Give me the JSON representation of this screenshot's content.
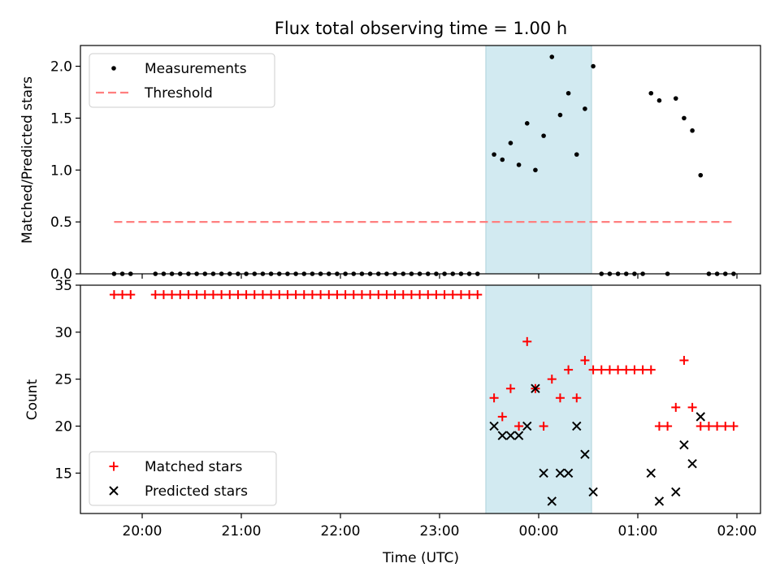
{
  "chart_data": [
    {
      "type": "scatter",
      "title": "Flux total observing time = 1.00 h",
      "xlabel": "",
      "ylabel": "Matched/Predicted stars",
      "ylim": [
        0,
        2.2
      ],
      "yticks": [
        "0.0",
        "0.5",
        "1.0",
        "1.5",
        "2.0"
      ],
      "grid": false,
      "legend_position": "upper-left",
      "shaded_interval": {
        "start": "23:28",
        "end": "00:32",
        "color": "#add8e6"
      },
      "series": [
        {
          "name": "Measurements",
          "color": "#000000",
          "marker": "dot",
          "points": [
            {
              "x": "19:43",
              "y": 0
            },
            {
              "x": "19:48",
              "y": 0
            },
            {
              "x": "19:53",
              "y": 0
            },
            {
              "x": "20:08",
              "y": 0
            },
            {
              "x": "20:13",
              "y": 0
            },
            {
              "x": "20:18",
              "y": 0
            },
            {
              "x": "20:23",
              "y": 0
            },
            {
              "x": "20:28",
              "y": 0
            },
            {
              "x": "20:33",
              "y": 0
            },
            {
              "x": "20:38",
              "y": 0
            },
            {
              "x": "20:43",
              "y": 0
            },
            {
              "x": "20:48",
              "y": 0
            },
            {
              "x": "20:53",
              "y": 0
            },
            {
              "x": "20:58",
              "y": 0
            },
            {
              "x": "21:03",
              "y": 0
            },
            {
              "x": "21:08",
              "y": 0
            },
            {
              "x": "21:13",
              "y": 0
            },
            {
              "x": "21:18",
              "y": 0
            },
            {
              "x": "21:23",
              "y": 0
            },
            {
              "x": "21:28",
              "y": 0
            },
            {
              "x": "21:33",
              "y": 0
            },
            {
              "x": "21:38",
              "y": 0
            },
            {
              "x": "21:43",
              "y": 0
            },
            {
              "x": "21:48",
              "y": 0
            },
            {
              "x": "21:53",
              "y": 0
            },
            {
              "x": "21:58",
              "y": 0
            },
            {
              "x": "22:03",
              "y": 0
            },
            {
              "x": "22:08",
              "y": 0
            },
            {
              "x": "22:13",
              "y": 0
            },
            {
              "x": "22:18",
              "y": 0
            },
            {
              "x": "22:23",
              "y": 0
            },
            {
              "x": "22:28",
              "y": 0
            },
            {
              "x": "22:33",
              "y": 0
            },
            {
              "x": "22:38",
              "y": 0
            },
            {
              "x": "22:43",
              "y": 0
            },
            {
              "x": "22:48",
              "y": 0
            },
            {
              "x": "22:53",
              "y": 0
            },
            {
              "x": "22:58",
              "y": 0
            },
            {
              "x": "23:03",
              "y": 0
            },
            {
              "x": "23:08",
              "y": 0
            },
            {
              "x": "23:13",
              "y": 0
            },
            {
              "x": "23:18",
              "y": 0
            },
            {
              "x": "23:23",
              "y": 0
            },
            {
              "x": "23:33",
              "y": 1.15
            },
            {
              "x": "23:38",
              "y": 1.1
            },
            {
              "x": "23:43",
              "y": 1.26
            },
            {
              "x": "23:48",
              "y": 1.05
            },
            {
              "x": "23:53",
              "y": 1.45
            },
            {
              "x": "23:58",
              "y": 1.0
            },
            {
              "x": "00:03",
              "y": 1.33
            },
            {
              "x": "00:08",
              "y": 2.09
            },
            {
              "x": "00:13",
              "y": 1.53
            },
            {
              "x": "00:18",
              "y": 1.74
            },
            {
              "x": "00:23",
              "y": 1.15
            },
            {
              "x": "00:28",
              "y": 1.59
            },
            {
              "x": "00:33",
              "y": 2.0
            },
            {
              "x": "00:38",
              "y": 0
            },
            {
              "x": "00:43",
              "y": 0
            },
            {
              "x": "00:48",
              "y": 0
            },
            {
              "x": "00:53",
              "y": 0
            },
            {
              "x": "00:58",
              "y": 0
            },
            {
              "x": "01:03",
              "y": 0
            },
            {
              "x": "01:08",
              "y": 1.74
            },
            {
              "x": "01:13",
              "y": 1.67
            },
            {
              "x": "01:18",
              "y": 0
            },
            {
              "x": "01:23",
              "y": 1.69
            },
            {
              "x": "01:28",
              "y": 1.5
            },
            {
              "x": "01:33",
              "y": 1.38
            },
            {
              "x": "01:38",
              "y": 0.95
            },
            {
              "x": "01:43",
              "y": 0
            },
            {
              "x": "01:48",
              "y": 0
            },
            {
              "x": "01:53",
              "y": 0
            },
            {
              "x": "01:58",
              "y": 0
            }
          ]
        },
        {
          "name": "Threshold",
          "color": "#ff7f7f",
          "style": "dashed-line",
          "points": [
            {
              "x": "19:43",
              "y": 0.5
            },
            {
              "x": "01:58",
              "y": 0.5
            }
          ]
        }
      ]
    },
    {
      "type": "scatter",
      "title": "",
      "xlabel": "Time (UTC)",
      "ylabel": "Count",
      "ylim": [
        10.7,
        35
      ],
      "yticks": [
        "15",
        "20",
        "25",
        "30",
        "35"
      ],
      "xticks": [
        "20:00",
        "21:00",
        "22:00",
        "23:00",
        "00:00",
        "01:00",
        "02:00"
      ],
      "grid": false,
      "legend_position": "lower-left",
      "shaded_interval": {
        "start": "23:28",
        "end": "00:32",
        "color": "#add8e6"
      },
      "series": [
        {
          "name": "Matched stars",
          "color": "#ff0000",
          "marker": "plus",
          "points": [
            {
              "x": "19:43",
              "y": 34
            },
            {
              "x": "19:48",
              "y": 34
            },
            {
              "x": "19:53",
              "y": 34
            },
            {
              "x": "20:08",
              "y": 34
            },
            {
              "x": "20:13",
              "y": 34
            },
            {
              "x": "20:18",
              "y": 34
            },
            {
              "x": "20:23",
              "y": 34
            },
            {
              "x": "20:28",
              "y": 34
            },
            {
              "x": "20:33",
              "y": 34
            },
            {
              "x": "20:38",
              "y": 34
            },
            {
              "x": "20:43",
              "y": 34
            },
            {
              "x": "20:48",
              "y": 34
            },
            {
              "x": "20:53",
              "y": 34
            },
            {
              "x": "20:58",
              "y": 34
            },
            {
              "x": "21:03",
              "y": 34
            },
            {
              "x": "21:08",
              "y": 34
            },
            {
              "x": "21:13",
              "y": 34
            },
            {
              "x": "21:18",
              "y": 34
            },
            {
              "x": "21:23",
              "y": 34
            },
            {
              "x": "21:28",
              "y": 34
            },
            {
              "x": "21:33",
              "y": 34
            },
            {
              "x": "21:38",
              "y": 34
            },
            {
              "x": "21:43",
              "y": 34
            },
            {
              "x": "21:48",
              "y": 34
            },
            {
              "x": "21:53",
              "y": 34
            },
            {
              "x": "21:58",
              "y": 34
            },
            {
              "x": "22:03",
              "y": 34
            },
            {
              "x": "22:08",
              "y": 34
            },
            {
              "x": "22:13",
              "y": 34
            },
            {
              "x": "22:18",
              "y": 34
            },
            {
              "x": "22:23",
              "y": 34
            },
            {
              "x": "22:28",
              "y": 34
            },
            {
              "x": "22:33",
              "y": 34
            },
            {
              "x": "22:38",
              "y": 34
            },
            {
              "x": "22:43",
              "y": 34
            },
            {
              "x": "22:48",
              "y": 34
            },
            {
              "x": "22:53",
              "y": 34
            },
            {
              "x": "22:58",
              "y": 34
            },
            {
              "x": "23:03",
              "y": 34
            },
            {
              "x": "23:08",
              "y": 34
            },
            {
              "x": "23:13",
              "y": 34
            },
            {
              "x": "23:18",
              "y": 34
            },
            {
              "x": "23:23",
              "y": 34
            },
            {
              "x": "23:33",
              "y": 23
            },
            {
              "x": "23:38",
              "y": 21
            },
            {
              "x": "23:43",
              "y": 24
            },
            {
              "x": "23:48",
              "y": 20
            },
            {
              "x": "23:53",
              "y": 29
            },
            {
              "x": "23:58",
              "y": 24
            },
            {
              "x": "00:03",
              "y": 20
            },
            {
              "x": "00:08",
              "y": 25
            },
            {
              "x": "00:13",
              "y": 23
            },
            {
              "x": "00:18",
              "y": 26
            },
            {
              "x": "00:23",
              "y": 23
            },
            {
              "x": "00:28",
              "y": 27
            },
            {
              "x": "00:33",
              "y": 26
            },
            {
              "x": "00:38",
              "y": 26
            },
            {
              "x": "00:43",
              "y": 26
            },
            {
              "x": "00:48",
              "y": 26
            },
            {
              "x": "00:53",
              "y": 26
            },
            {
              "x": "00:58",
              "y": 26
            },
            {
              "x": "01:03",
              "y": 26
            },
            {
              "x": "01:08",
              "y": 26
            },
            {
              "x": "01:13",
              "y": 20
            },
            {
              "x": "01:18",
              "y": 20
            },
            {
              "x": "01:23",
              "y": 22
            },
            {
              "x": "01:28",
              "y": 27
            },
            {
              "x": "01:33",
              "y": 22
            },
            {
              "x": "01:38",
              "y": 20
            },
            {
              "x": "01:43",
              "y": 20
            },
            {
              "x": "01:48",
              "y": 20
            },
            {
              "x": "01:53",
              "y": 20
            },
            {
              "x": "01:58",
              "y": 20
            }
          ]
        },
        {
          "name": "Predicted stars",
          "color": "#000000",
          "marker": "x",
          "points": [
            {
              "x": "23:33",
              "y": 20
            },
            {
              "x": "23:38",
              "y": 19
            },
            {
              "x": "23:43",
              "y": 19
            },
            {
              "x": "23:48",
              "y": 19
            },
            {
              "x": "23:53",
              "y": 20
            },
            {
              "x": "23:58",
              "y": 24
            },
            {
              "x": "00:03",
              "y": 15
            },
            {
              "x": "00:08",
              "y": 12
            },
            {
              "x": "00:13",
              "y": 15
            },
            {
              "x": "00:18",
              "y": 15
            },
            {
              "x": "00:23",
              "y": 20
            },
            {
              "x": "00:28",
              "y": 17
            },
            {
              "x": "00:33",
              "y": 13
            },
            {
              "x": "01:08",
              "y": 15
            },
            {
              "x": "01:13",
              "y": 12
            },
            {
              "x": "01:23",
              "y": 13
            },
            {
              "x": "01:28",
              "y": 18
            },
            {
              "x": "01:33",
              "y": 16
            },
            {
              "x": "01:38",
              "y": 21
            }
          ]
        }
      ]
    }
  ]
}
